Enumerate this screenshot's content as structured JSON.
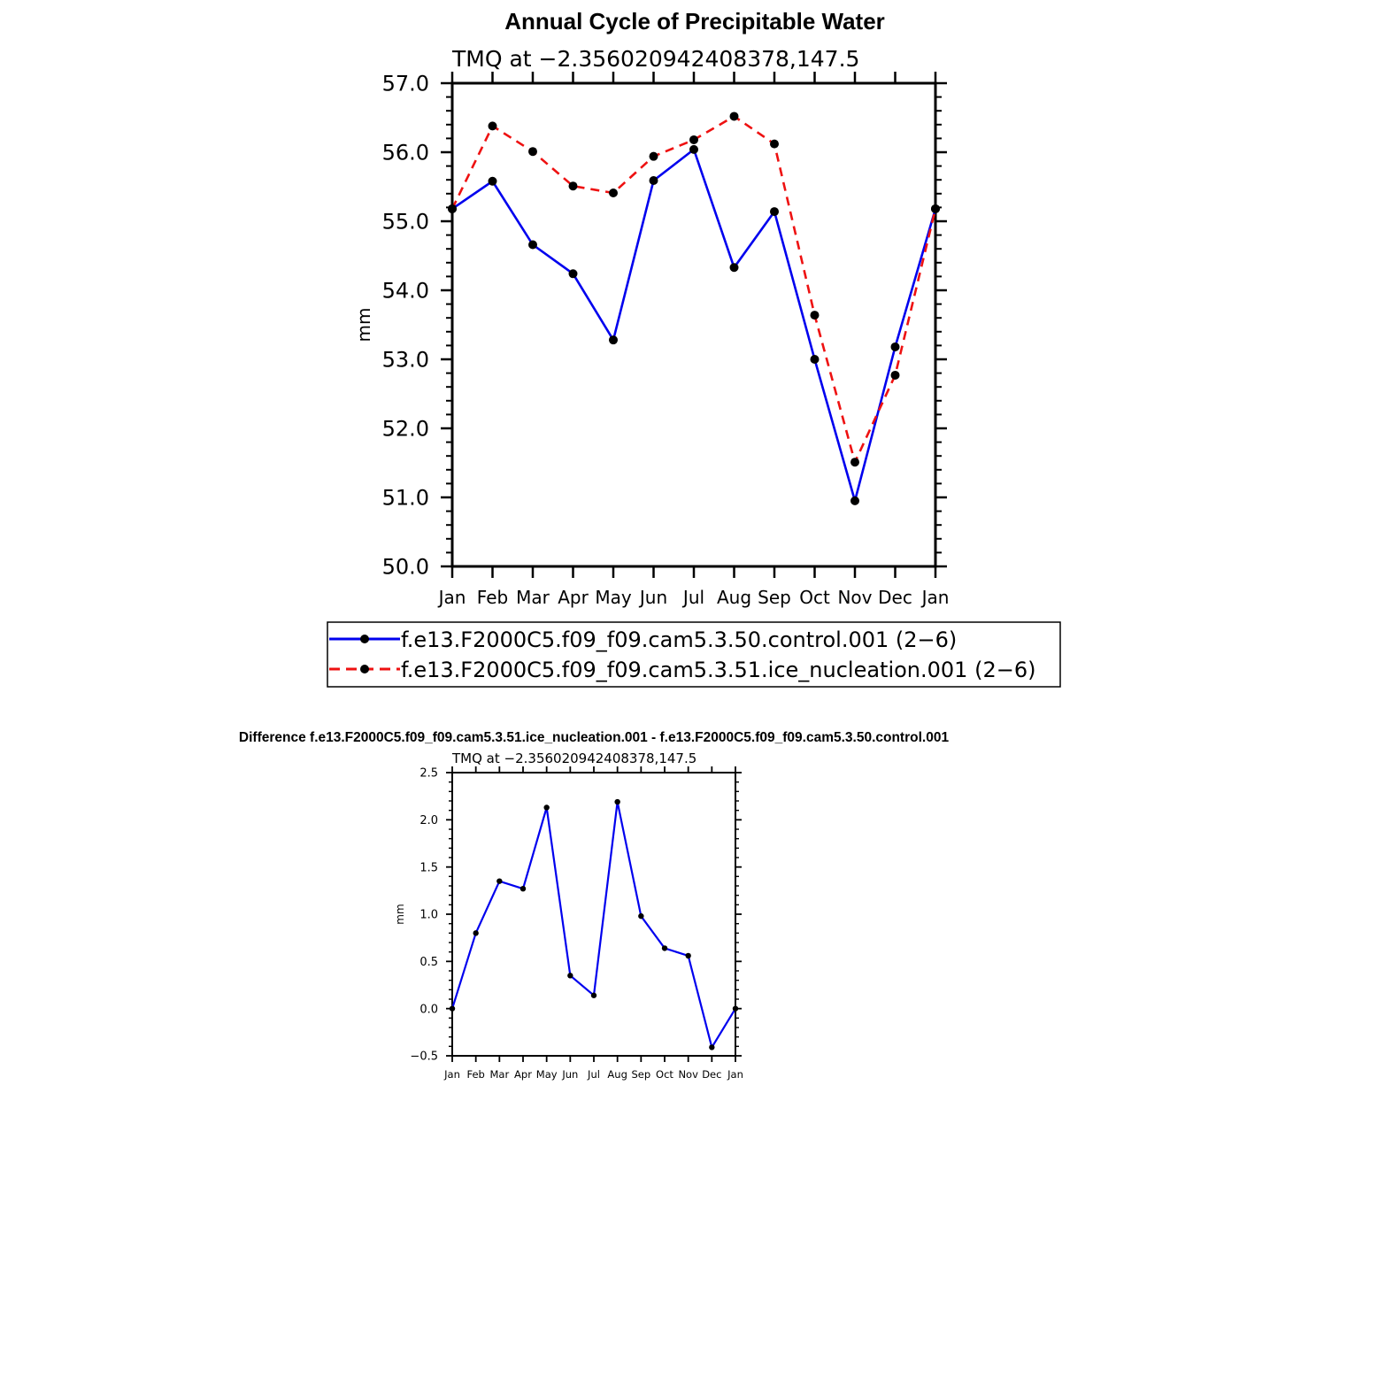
{
  "chart_data": [
    {
      "type": "line",
      "title": "Annual Cycle of Precipitable Water",
      "subtitle": "TMQ at −2.356020942408378,147.5",
      "xlabel": "",
      "ylabel": "mm",
      "categories": [
        "Jan",
        "Feb",
        "Mar",
        "Apr",
        "May",
        "Jun",
        "Jul",
        "Aug",
        "Sep",
        "Oct",
        "Nov",
        "Dec",
        "Jan"
      ],
      "ylim": [
        50.0,
        57.0
      ],
      "yticks": [
        50.0,
        51.0,
        52.0,
        53.0,
        54.0,
        55.0,
        56.0,
        57.0
      ],
      "ytick_labels": [
        "50.0",
        "51.0",
        "52.0",
        "53.0",
        "54.0",
        "55.0",
        "56.0",
        "57.0"
      ],
      "legend_position": "bottom",
      "series": [
        {
          "name": "f.e13.F2000C5.f09_f09.cam5.3.50.control.001 (2−6)",
          "color": "#0000ee",
          "dash": "solid",
          "values": [
            55.18,
            55.58,
            54.66,
            54.24,
            53.28,
            55.59,
            56.04,
            54.33,
            55.14,
            53.0,
            50.95,
            53.18,
            55.18
          ]
        },
        {
          "name": "f.e13.F2000C5.f09_f09.cam5.3.51.ice_nucleation.001 (2−6)",
          "color": "#ee1111",
          "dash": "dashed",
          "values": [
            55.18,
            56.38,
            56.01,
            55.51,
            55.41,
            55.94,
            56.18,
            56.52,
            56.12,
            53.64,
            51.51,
            52.77,
            55.18
          ]
        }
      ]
    },
    {
      "type": "line",
      "title": "Difference f.e13.F2000C5.f09_f09.cam5.3.51.ice_nucleation.001 - f.e13.F2000C5.f09_f09.cam5.3.50.control.001",
      "subtitle": "TMQ at −2.356020942408378,147.5",
      "xlabel": "",
      "ylabel": "mm",
      "categories": [
        "Jan",
        "Feb",
        "Mar",
        "Apr",
        "May",
        "Jun",
        "Jul",
        "Aug",
        "Sep",
        "Oct",
        "Nov",
        "Dec",
        "Jan"
      ],
      "ylim": [
        -0.5,
        2.5
      ],
      "yticks": [
        -0.5,
        0.0,
        0.5,
        1.0,
        1.5,
        2.0,
        2.5
      ],
      "ytick_labels": [
        "−0.5",
        "0.0",
        "0.5",
        "1.0",
        "1.5",
        "2.0",
        "2.5"
      ],
      "series": [
        {
          "name": "Difference",
          "color": "#0000ee",
          "dash": "solid",
          "values": [
            0.0,
            0.8,
            1.35,
            1.27,
            2.13,
            0.35,
            0.14,
            2.19,
            0.98,
            0.64,
            0.56,
            -0.41,
            0.0
          ]
        }
      ]
    }
  ]
}
